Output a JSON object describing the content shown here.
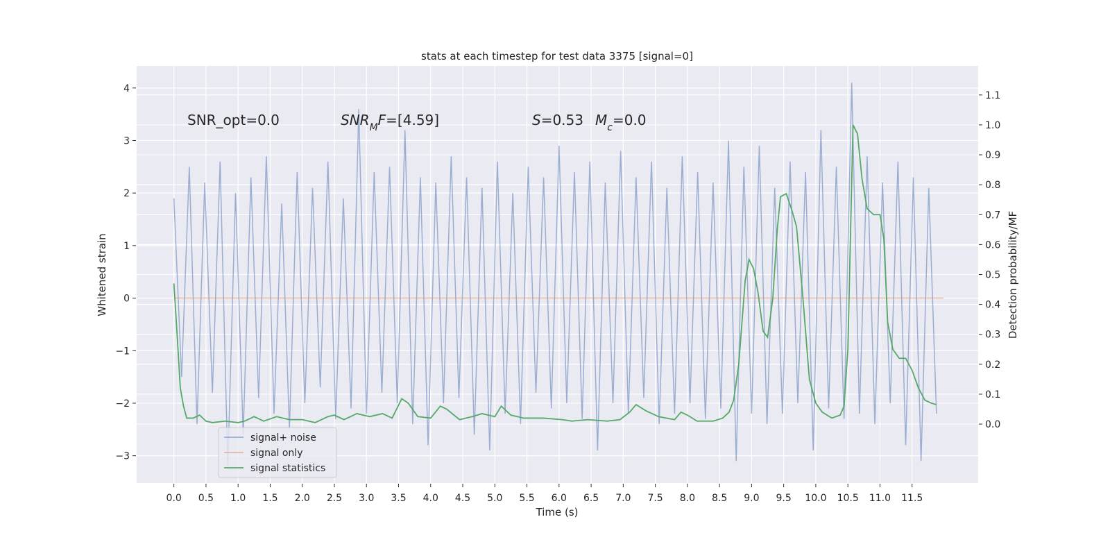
{
  "chart_data": {
    "type": "line",
    "title": "stats at each timestep for test data 3375 [signal=0]",
    "x_label": "Time (s)",
    "y_label": "Whitened strain",
    "y2_label": "Detection probability/MF",
    "xlim": [
      -0.58,
      12.53
    ],
    "ylim": [
      -3.52,
      4.42
    ],
    "y2lim": [
      -0.197,
      1.197
    ],
    "xticks": [
      {
        "value": 0,
        "label": "0.0"
      },
      0.5,
      {
        "value": 1,
        "label": "1.0"
      },
      1.5,
      {
        "value": 2,
        "label": "2.0"
      },
      2.5,
      {
        "value": 3,
        "label": "3.0"
      },
      3.5,
      {
        "value": 4,
        "label": "4.0"
      },
      4.5,
      {
        "value": 5,
        "label": "5.0"
      },
      5.5,
      {
        "value": 6,
        "label": "6.0"
      },
      6.5,
      {
        "value": 7,
        "label": "7.0"
      },
      7.5,
      {
        "value": 8,
        "label": "8.0"
      },
      8.5,
      {
        "value": 9,
        "label": "9.0"
      },
      9.5,
      {
        "value": 10,
        "label": "10.0"
      },
      10.5,
      {
        "value": 11,
        "label": "11.0"
      },
      11.5
    ],
    "yticks": [
      {
        "value": -3,
        "label": "−3"
      },
      {
        "value": -2,
        "label": "−2"
      },
      {
        "value": -1,
        "label": "−1"
      },
      0,
      1,
      2,
      3,
      4
    ],
    "y2ticks": [
      {
        "value": 0,
        "label": "0.0"
      },
      0.1,
      0.2,
      0.3,
      0.4,
      0.5,
      0.6,
      0.7,
      0.8,
      0.9,
      {
        "value": 1,
        "label": "1.0"
      },
      1.1
    ],
    "grid": true,
    "legend_loc": "lower left",
    "annotations": [
      [
        {
          "text": "SNR_opt=0.0",
          "style": "normal"
        }
      ],
      [
        {
          "text": "SNR",
          "style": "italic"
        },
        {
          "text": "M",
          "style": "sub"
        },
        {
          "text": "F",
          "style": "italic"
        },
        {
          "text": "=[4.59]",
          "style": "normal"
        }
      ],
      [
        {
          "text": "S",
          "style": "italic"
        },
        {
          "text": "=0.53",
          "style": "normal"
        }
      ],
      [
        {
          "text": "M",
          "style": "italic"
        },
        {
          "text": "c",
          "style": "sub"
        },
        {
          "text": "=0.0",
          "style": "normal"
        }
      ]
    ],
    "series": [
      {
        "name": "signal+ noise",
        "color": "#4c72b0",
        "axis": "y",
        "x": [
          0,
          0.12,
          0.24,
          0.36,
          0.48,
          0.6,
          0.72,
          0.84,
          0.96,
          1.08,
          1.2,
          1.32,
          1.44,
          1.56,
          1.68,
          1.8,
          1.92,
          2.04,
          2.16,
          2.28,
          2.4,
          2.52,
          2.64,
          2.76,
          2.88,
          3,
          3.12,
          3.24,
          3.36,
          3.48,
          3.6,
          3.72,
          3.84,
          3.96,
          4.08,
          4.2,
          4.32,
          4.44,
          4.56,
          4.68,
          4.8,
          4.92,
          5.04,
          5.16,
          5.28,
          5.4,
          5.52,
          5.64,
          5.76,
          5.88,
          6,
          6.12,
          6.24,
          6.36,
          6.48,
          6.6,
          6.72,
          6.84,
          6.96,
          7.08,
          7.2,
          7.32,
          7.44,
          7.56,
          7.68,
          7.8,
          7.92,
          8.04,
          8.16,
          8.28,
          8.4,
          8.52,
          8.64,
          8.76,
          8.88,
          9,
          9.12,
          9.24,
          9.36,
          9.48,
          9.6,
          9.72,
          9.84,
          9.96,
          10.08,
          10.2,
          10.32,
          10.44,
          10.56,
          10.68,
          10.8,
          10.92,
          11.04,
          11.16,
          11.28,
          11.4,
          11.52,
          11.64,
          11.76,
          11.88
        ],
        "values": [
          1.9,
          -1.5,
          2.5,
          -2.4,
          2.2,
          -1.8,
          2.6,
          -3.2,
          2.0,
          -2.6,
          2.3,
          -1.9,
          2.7,
          -2.2,
          1.8,
          -2.5,
          2.4,
          -2.0,
          2.1,
          -1.7,
          2.6,
          -2.3,
          1.9,
          -2.1,
          3.6,
          -2.2,
          2.4,
          -1.8,
          2.5,
          -2.0,
          3.2,
          -2.4,
          2.3,
          -2.8,
          2.2,
          -2.0,
          2.7,
          -1.9,
          2.3,
          -2.6,
          2.1,
          -2.9,
          2.6,
          -2.2,
          2.0,
          -2.4,
          2.5,
          -1.8,
          2.3,
          -2.1,
          2.9,
          -2.0,
          2.4,
          -2.3,
          2.6,
          -2.9,
          2.2,
          -2.0,
          2.8,
          -2.2,
          2.3,
          -1.9,
          2.6,
          -2.4,
          2.1,
          -2.2,
          2.7,
          -2.0,
          2.4,
          -2.3,
          2.2,
          -2.1,
          3.0,
          -3.1,
          2.5,
          -2.2,
          2.9,
          -2.4,
          2.1,
          -2.2,
          2.6,
          -2.0,
          2.4,
          -2.9,
          3.2,
          -2.1,
          2.5,
          -2.3,
          4.1,
          -2.2,
          2.7,
          -2.4,
          2.2,
          -2.0,
          2.6,
          -2.8,
          2.3,
          -3.1,
          2.1,
          -2.2
        ]
      },
      {
        "name": "signal only",
        "color": "#dd8452",
        "axis": "y",
        "x": [
          0,
          11.99
        ],
        "values": [
          0,
          0
        ]
      },
      {
        "name": "signal statistics",
        "color": "#55a868",
        "axis": "y2",
        "x": [
          0,
          0.05,
          0.1,
          0.15,
          0.2,
          0.3,
          0.4,
          0.5,
          0.6,
          0.8,
          1.0,
          1.1,
          1.25,
          1.4,
          1.6,
          1.8,
          2.0,
          2.2,
          2.4,
          2.5,
          2.65,
          2.85,
          3.05,
          3.25,
          3.4,
          3.55,
          3.65,
          3.8,
          4.0,
          4.15,
          4.25,
          4.45,
          4.65,
          4.8,
          5.0,
          5.1,
          5.25,
          5.45,
          5.75,
          6.05,
          6.2,
          6.45,
          6.75,
          6.95,
          7.1,
          7.2,
          7.35,
          7.55,
          7.8,
          7.9,
          8.0,
          8.15,
          8.4,
          8.55,
          8.65,
          8.72,
          8.8,
          8.9,
          8.96,
          9.03,
          9.1,
          9.18,
          9.25,
          9.33,
          9.4,
          9.45,
          9.54,
          9.62,
          9.7,
          9.8,
          9.9,
          10.0,
          10.1,
          10.25,
          10.38,
          10.44,
          10.5,
          10.58,
          10.65,
          10.72,
          10.8,
          10.9,
          11.0,
          11.06,
          11.12,
          11.2,
          11.3,
          11.4,
          11.5,
          11.6,
          11.7,
          11.8,
          11.88
        ],
        "values": [
          0.47,
          0.3,
          0.12,
          0.06,
          0.02,
          0.02,
          0.03,
          0.01,
          0.005,
          0.01,
          0.005,
          0.01,
          0.025,
          0.01,
          0.025,
          0.015,
          0.015,
          0.005,
          0.025,
          0.03,
          0.015,
          0.035,
          0.025,
          0.035,
          0.02,
          0.085,
          0.07,
          0.025,
          0.02,
          0.06,
          0.05,
          0.015,
          0.025,
          0.035,
          0.025,
          0.06,
          0.03,
          0.02,
          0.02,
          0.015,
          0.01,
          0.015,
          0.01,
          0.015,
          0.04,
          0.065,
          0.045,
          0.025,
          0.015,
          0.04,
          0.03,
          0.01,
          0.01,
          0.02,
          0.04,
          0.08,
          0.2,
          0.48,
          0.55,
          0.52,
          0.44,
          0.31,
          0.29,
          0.42,
          0.65,
          0.76,
          0.77,
          0.72,
          0.66,
          0.42,
          0.15,
          0.07,
          0.04,
          0.02,
          0.03,
          0.06,
          0.25,
          1.0,
          0.97,
          0.82,
          0.72,
          0.7,
          0.7,
          0.62,
          0.34,
          0.25,
          0.22,
          0.22,
          0.18,
          0.12,
          0.08,
          0.07,
          0.065
        ]
      }
    ]
  }
}
